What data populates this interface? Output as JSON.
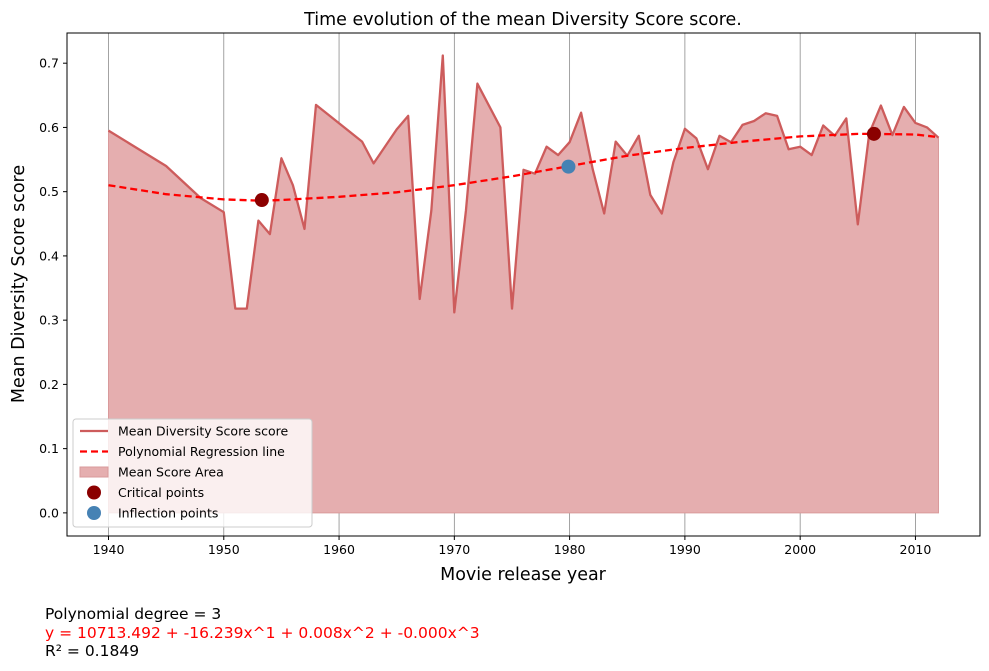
{
  "chart_data": {
    "type": "line",
    "title": "Time evolution of the mean Diversity Score score.",
    "xlabel": "Movie release year",
    "ylabel": "Mean Diversity Score score",
    "xlim": [
      1936.4,
      2015.6
    ],
    "ylim": [
      -0.036,
      0.747
    ],
    "xticks": [
      1940,
      1950,
      1960,
      1970,
      1980,
      1990,
      2000,
      2010
    ],
    "yticks": [
      0.0,
      0.1,
      0.2,
      0.3,
      0.4,
      0.5,
      0.6,
      0.7
    ],
    "ytick_labels": [
      "0.0",
      "0.1",
      "0.2",
      "0.3",
      "0.4",
      "0.5",
      "0.6",
      "0.7"
    ],
    "grid": "vertical",
    "legend_position": "lower-left",
    "legend": [
      {
        "label": "Mean Diversity Score score",
        "kind": "line",
        "color": "#cd5c5c"
      },
      {
        "label": "Polynomial Regression line",
        "kind": "dashed",
        "color": "#ff0000"
      },
      {
        "label": "Mean Score Area",
        "kind": "area",
        "color": "#e5aeaf"
      },
      {
        "label": "Critical points",
        "kind": "marker",
        "color": "#8b0000"
      },
      {
        "label": "Inflection points",
        "kind": "marker",
        "color": "#4682b4"
      }
    ],
    "series": [
      {
        "name": "Mean Diversity Score score",
        "color": "#cd5c5c",
        "x": [
          1940,
          1945,
          1948,
          1950,
          1951,
          1952,
          1953,
          1954,
          1955,
          1956,
          1957,
          1958,
          1962,
          1963,
          1965,
          1966,
          1967,
          1968,
          1969,
          1970,
          1971,
          1972,
          1974,
          1975,
          1976,
          1977,
          1978,
          1979,
          1980,
          1981,
          1982,
          1983,
          1984,
          1985,
          1986,
          1987,
          1988,
          1989,
          1990,
          1991,
          1992,
          1993,
          1994,
          1995,
          1996,
          1997,
          1998,
          1999,
          2000,
          2001,
          2002,
          2003,
          2004,
          2005,
          2006,
          2007,
          2008,
          2009,
          2010,
          2011,
          2012
        ],
        "y": [
          0.595,
          0.54,
          0.49,
          0.468,
          0.318,
          0.318,
          0.455,
          0.434,
          0.552,
          0.51,
          0.442,
          0.635,
          0.578,
          0.544,
          0.597,
          0.618,
          0.333,
          0.47,
          0.712,
          0.312,
          0.47,
          0.668,
          0.6,
          0.318,
          0.534,
          0.528,
          0.57,
          0.557,
          0.577,
          0.623,
          0.535,
          0.466,
          0.578,
          0.556,
          0.587,
          0.495,
          0.466,
          0.546,
          0.598,
          0.583,
          0.535,
          0.587,
          0.577,
          0.604,
          0.61,
          0.622,
          0.618,
          0.566,
          0.57,
          0.557,
          0.603,
          0.587,
          0.614,
          0.449,
          0.591,
          0.634,
          0.588,
          0.632,
          0.607,
          0.6,
          0.584
        ]
      },
      {
        "name": "Polynomial Regression line",
        "color": "#ff0000",
        "x": [
          1940,
          1945,
          1950,
          1953.3,
          1955,
          1960,
          1965,
          1970,
          1975,
          1980,
          1985,
          1990,
          1995,
          2000,
          2005,
          2006.3,
          2010,
          2012
        ],
        "y": [
          0.51,
          0.496,
          0.488,
          0.486,
          0.487,
          0.492,
          0.499,
          0.51,
          0.524,
          0.54,
          0.556,
          0.568,
          0.578,
          0.586,
          0.59,
          0.59,
          0.589,
          0.585
        ]
      }
    ],
    "critical_points": [
      {
        "x": 1953.3,
        "y": 0.487
      },
      {
        "x": 2006.4,
        "y": 0.59
      }
    ],
    "inflection_points": [
      {
        "x": 1979.9,
        "y": 0.539
      }
    ],
    "annotations": {
      "degree": "Polynomial degree = 3",
      "equation": "y = 10713.492 + -16.239x^1 + 0.008x^2 + -0.000x^3",
      "r2": "R² = 0.1849"
    },
    "colors": {
      "line": "#cd5c5c",
      "area": "#e5aeaf",
      "regression": "#ff0000",
      "critical": "#8b0000",
      "inflection": "#4682b4",
      "equation_text": "#ff0000"
    }
  }
}
